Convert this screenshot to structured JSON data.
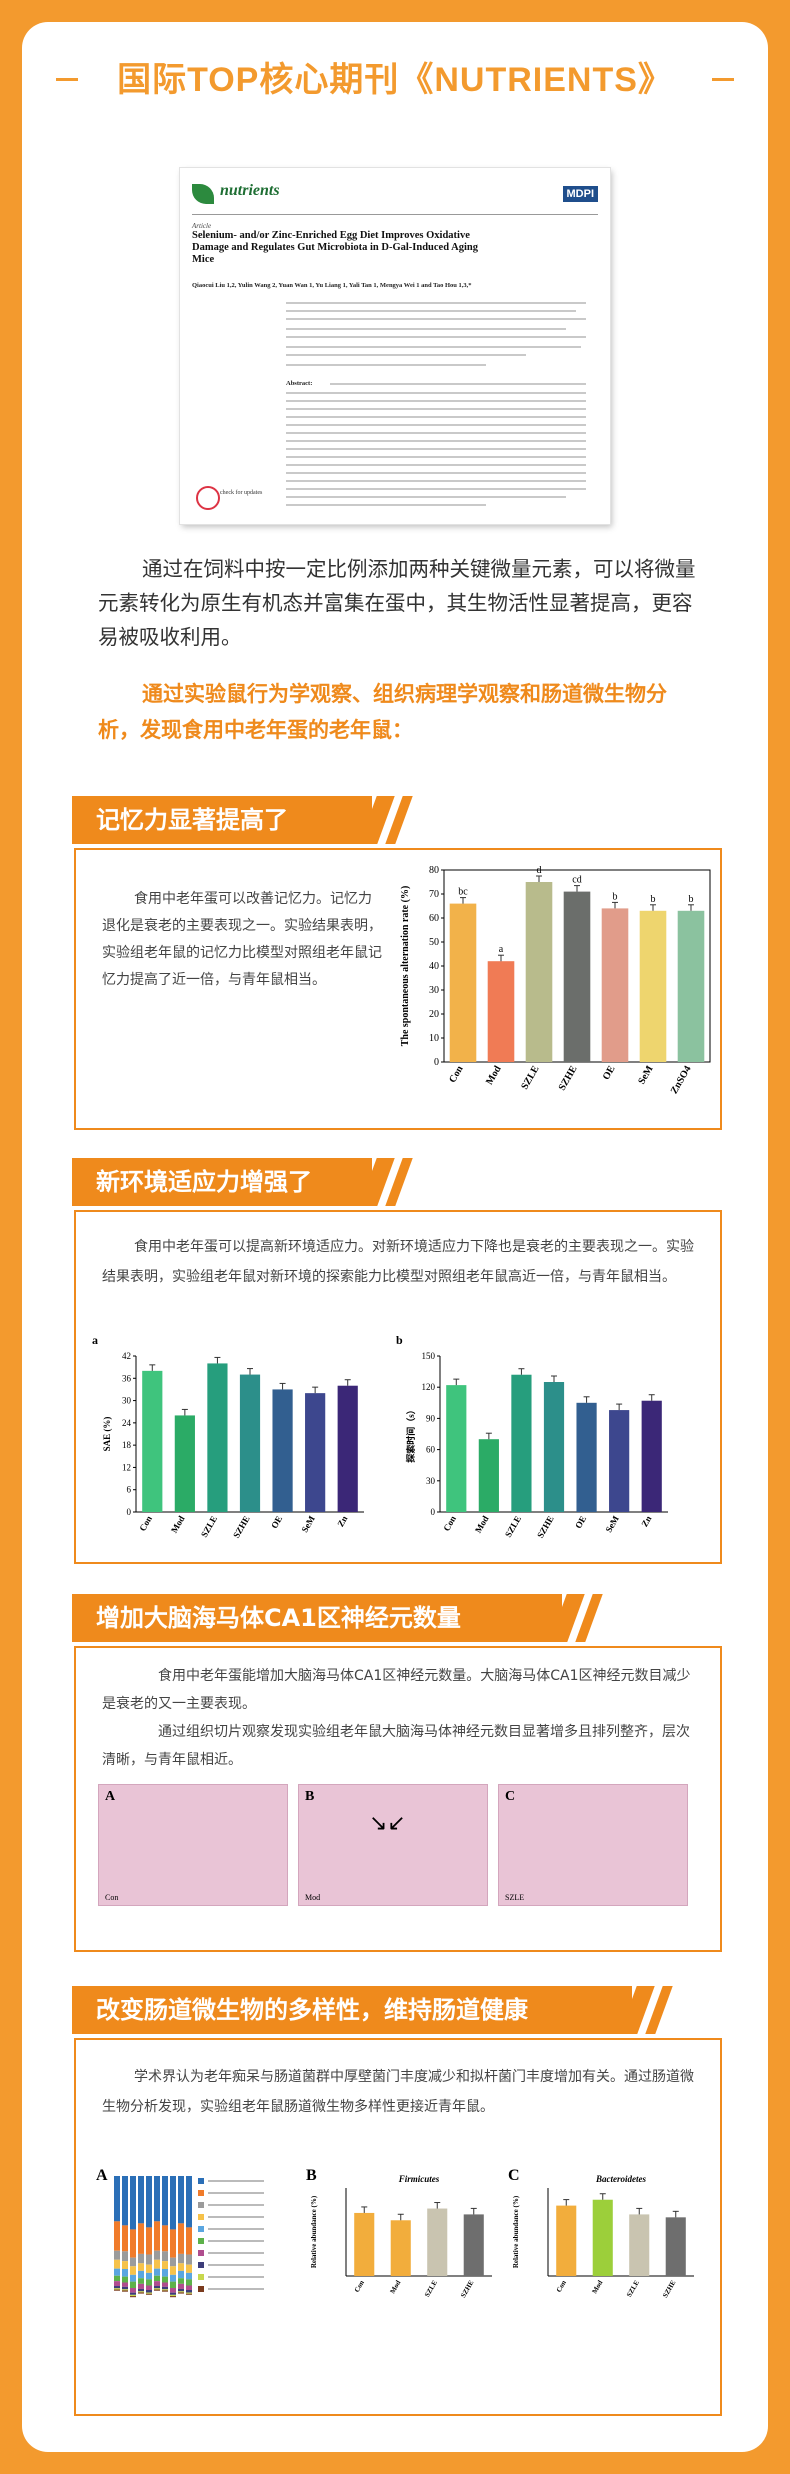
{
  "header": {
    "title": "国际TOP核心期刊《NUTRIENTS》"
  },
  "paper": {
    "journal": "nutrients",
    "publisher": "MDPI",
    "article_type": "Article",
    "title": "Selenium- and/or Zinc-Enriched Egg Diet Improves Oxidative Damage and Regulates Gut Microbiota in D-Gal-Induced Aging Mice",
    "authors": "Qiaocui Liu 1,2, Yulin Wang 2, Yuan Wan 1, Yu Liang 1, Yali Tan 1, Mengya Wei 1 and Tao Hou 1,3,*",
    "abstract_label": "Abstract:",
    "check_label": "check for updates"
  },
  "intro": {
    "para1": "通过在饲料中按一定比例添加两种关键微量元素，可以将微量元素转化为原生有机态并富集在蛋中，其生物活性显著提高，更容易被吸收利用。",
    "para2": "通过实验鼠行为学观察、组织病理学观察和肠道微生物分析，发现食用中老年蛋的老年鼠："
  },
  "sections": [
    {
      "title": "记忆力显著提高了",
      "text": "食用中老年蛋可以改善记忆力。记忆力退化是衰老的主要表现之一。实验结果表明，实验组老年鼠的记忆力比模型对照组老年鼠记忆力提高了近一倍，与青年鼠相当。"
    },
    {
      "title": "新环境适应力增强了",
      "text": "食用中老年蛋可以提高新环境适应力。对新环境适应力下降也是衰老的主要表现之一。实验结果表明，实验组老年鼠对新环境的探索能力比模型对照组老年鼠高近一倍，与青年鼠相当。"
    },
    {
      "title": "增加大脑海马体CA1区神经元数量",
      "text1": "食用中老年蛋能增加大脑海马体CA1区神经元数量。大脑海马体CA1区神经元数目减少是衰老的又一主要表现。",
      "text2": "通过组织切片观察发现实验组老年鼠大脑海马体神经元数目显著增多且排列整齐，层次清晰，与青年鼠相近。"
    },
    {
      "title": "改变肠道微生物的多样性，维持肠道健康",
      "text": "学术界认为老年痴呆与肠道菌群中厚壁菌门丰度减少和拟杆菌门丰度增加有关。通过肠道微生物分析发现，实验组老年鼠肠道微生物多样性更接近青年鼠。"
    }
  ],
  "chart_data": [
    {
      "type": "bar",
      "ylabel": "The spontaneous alternation rate (%)",
      "categories": [
        "Con",
        "Mod",
        "SZLE",
        "SZHE",
        "OE",
        "SeM",
        "ZnSO4"
      ],
      "values": [
        66,
        42,
        75,
        71,
        64,
        63,
        63
      ],
      "letters": [
        "bc",
        "a",
        "d",
        "cd",
        "b",
        "b",
        "b"
      ],
      "colors": [
        "#f2b24a",
        "#f07b55",
        "#b8bb8c",
        "#6b6e6b",
        "#e19c8a",
        "#eed56e",
        "#8bc29f"
      ],
      "ylim": [
        0,
        80
      ],
      "yticks": [
        0,
        10,
        20,
        30,
        40,
        50,
        60,
        70,
        80
      ]
    },
    {
      "type": "bar",
      "panel": "a",
      "ylabel": "SAE (%)",
      "categories": [
        "Con",
        "Mod",
        "SZLE",
        "SZHE",
        "OE",
        "SeM",
        "Zn"
      ],
      "values": [
        38,
        26,
        40,
        37,
        33,
        32,
        34
      ],
      "colors": [
        "#3fc47d",
        "#2bab66",
        "#269e7d",
        "#2c8f8a",
        "#325f90",
        "#3d478e",
        "#3b2777"
      ],
      "ylim": [
        0,
        42
      ],
      "yticks": [
        0,
        6,
        12,
        18,
        24,
        30,
        36,
        42
      ]
    },
    {
      "type": "bar",
      "panel": "b",
      "ylabel": "探索时间（s）",
      "categories": [
        "Con",
        "Mod",
        "SZLE",
        "SZHE",
        "OE",
        "SeM",
        "Zn"
      ],
      "values": [
        122,
        70,
        132,
        125,
        105,
        98,
        107
      ],
      "colors": [
        "#3fc47d",
        "#2bab66",
        "#269e7d",
        "#2c8f8a",
        "#325f90",
        "#3d478e",
        "#3b2777"
      ],
      "ylim": [
        0,
        150
      ],
      "yticks": [
        0,
        30,
        60,
        90,
        120,
        150
      ]
    },
    {
      "type": "bar",
      "panel": "B",
      "title": "Firmicutes",
      "ylabel": "Relative abundance (%)",
      "categories": [
        "Con",
        "Mod",
        "SZLE",
        "SZHE"
      ],
      "values": [
        43,
        38,
        46,
        42
      ],
      "colors": [
        "#f2ad3c",
        "#f2ad3c",
        "#c9c4b0",
        "#6e6e6e"
      ],
      "ylim": [
        0,
        60
      ]
    },
    {
      "type": "bar",
      "panel": "C",
      "title": "Bacteroidetes",
      "ylabel": "Relative abundance (%)",
      "categories": [
        "Con",
        "Mod",
        "SZLE",
        "SZHE"
      ],
      "values": [
        48,
        52,
        42,
        40
      ],
      "colors": [
        "#f2ad3c",
        "#9ccf3a",
        "#c9c4b0",
        "#6e6e6e"
      ],
      "ylim": [
        0,
        60
      ]
    }
  ],
  "hist_panels": [
    {
      "label": "A",
      "caption": "Con"
    },
    {
      "label": "B",
      "caption": "Mod"
    },
    {
      "label": "C",
      "caption": "SZLE"
    }
  ],
  "stack_panel": {
    "label": "A"
  }
}
